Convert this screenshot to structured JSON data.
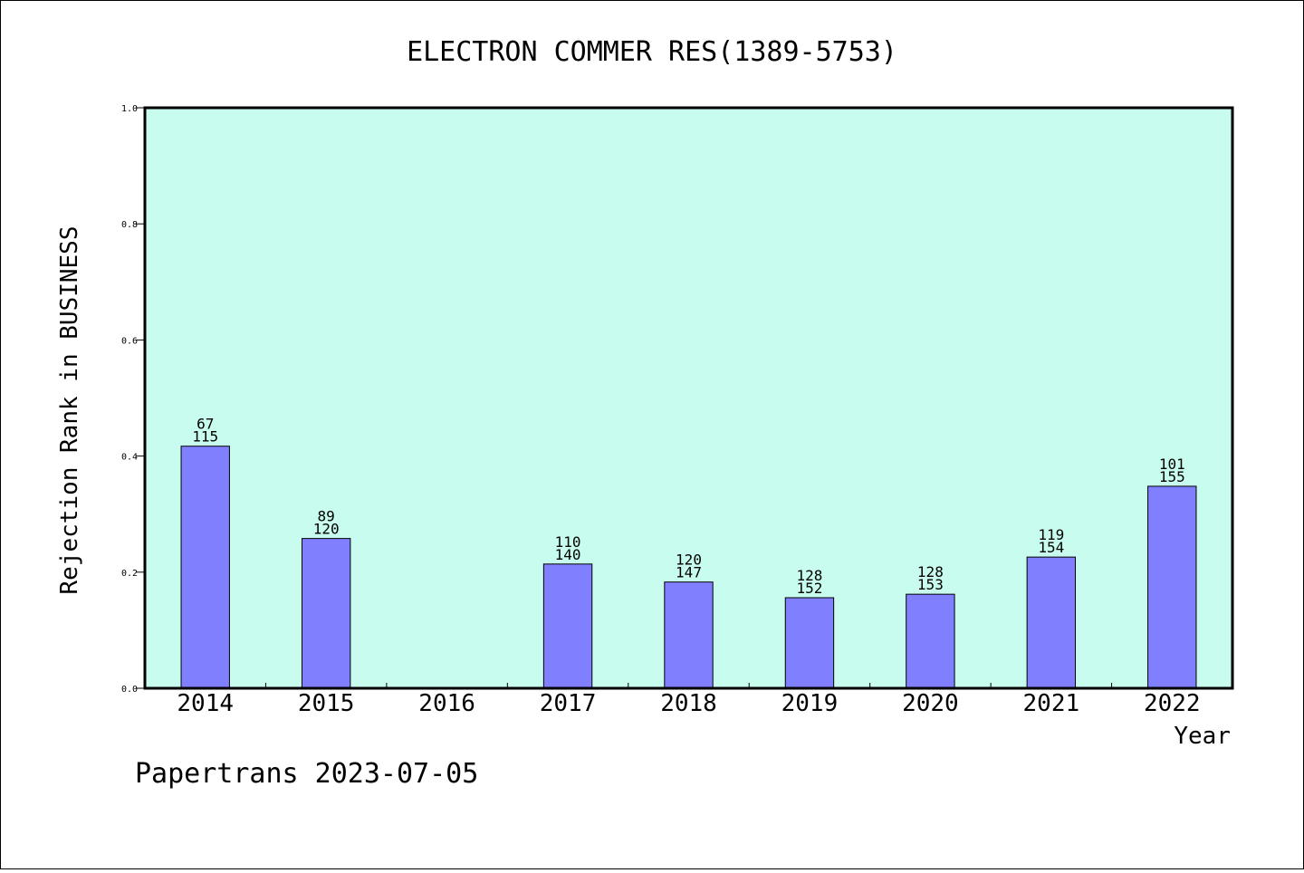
{
  "chart_data": {
    "type": "bar",
    "title": "ELECTRON COMMER RES(1389-5753)",
    "xlabel": "Year",
    "ylabel": "Rejection Rank in BUSINESS",
    "ylim": [
      0,
      1.0
    ],
    "yticks": [
      "0.0",
      "0.2",
      "0.4",
      "0.6",
      "0.8",
      "1.0"
    ],
    "categories": [
      "2014",
      "2015",
      "2016",
      "2017",
      "2018",
      "2019",
      "2020",
      "2021",
      "2022"
    ],
    "values": [
      0.417,
      0.258,
      null,
      0.214,
      0.183,
      0.156,
      0.162,
      0.226,
      0.348
    ],
    "label_top": [
      "67",
      "89",
      "",
      "110",
      "120",
      "128",
      "128",
      "119",
      "101"
    ],
    "label_bottom": [
      "115",
      "120",
      "",
      "140",
      "147",
      "152",
      "153",
      "154",
      "155"
    ],
    "grid": false,
    "plot_background": "#c8fcee",
    "bar_color": "#8080ff"
  },
  "footer": "Papertrans 2023-07-05"
}
